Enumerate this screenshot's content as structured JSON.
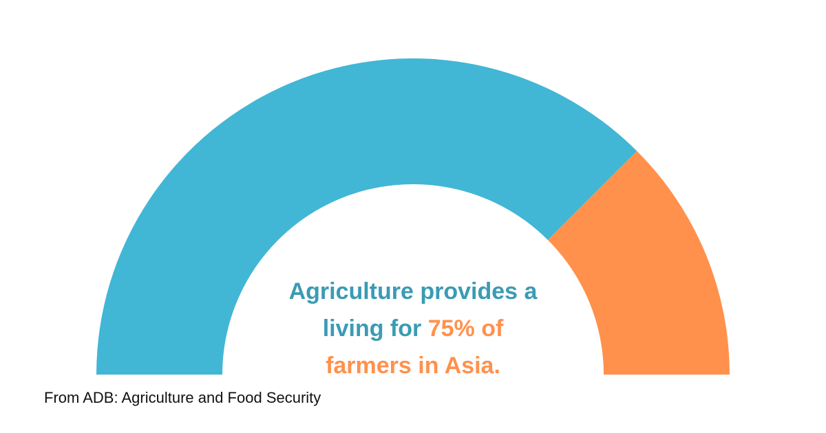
{
  "chart_data": {
    "type": "pie",
    "variant": "half-donut gauge",
    "segments": [
      {
        "value": 75,
        "color": "#42b6d5"
      },
      {
        "value": 25,
        "color": "#ff914d"
      }
    ],
    "total": 100
  },
  "headline": {
    "line1": "Agriculture provides a",
    "line2_prefix": "living for ",
    "line2_highlight": "75% of",
    "line3_highlight": "farmers in Asia.",
    "text_color": "#3b9bb3",
    "highlight_color": "#ff914d"
  },
  "source": {
    "text": "From ADB: Agriculture and Food Security"
  }
}
